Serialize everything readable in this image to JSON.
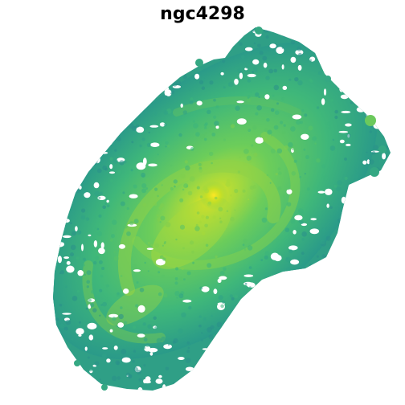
{
  "figure": {
    "title": "ngc4298",
    "colormap": "viridis",
    "background": "#ffffff",
    "palette": {
      "low": "#2a9a89",
      "mid": "#44b476",
      "high": "#7fcd4f",
      "peak": "#f2e51d"
    }
  }
}
